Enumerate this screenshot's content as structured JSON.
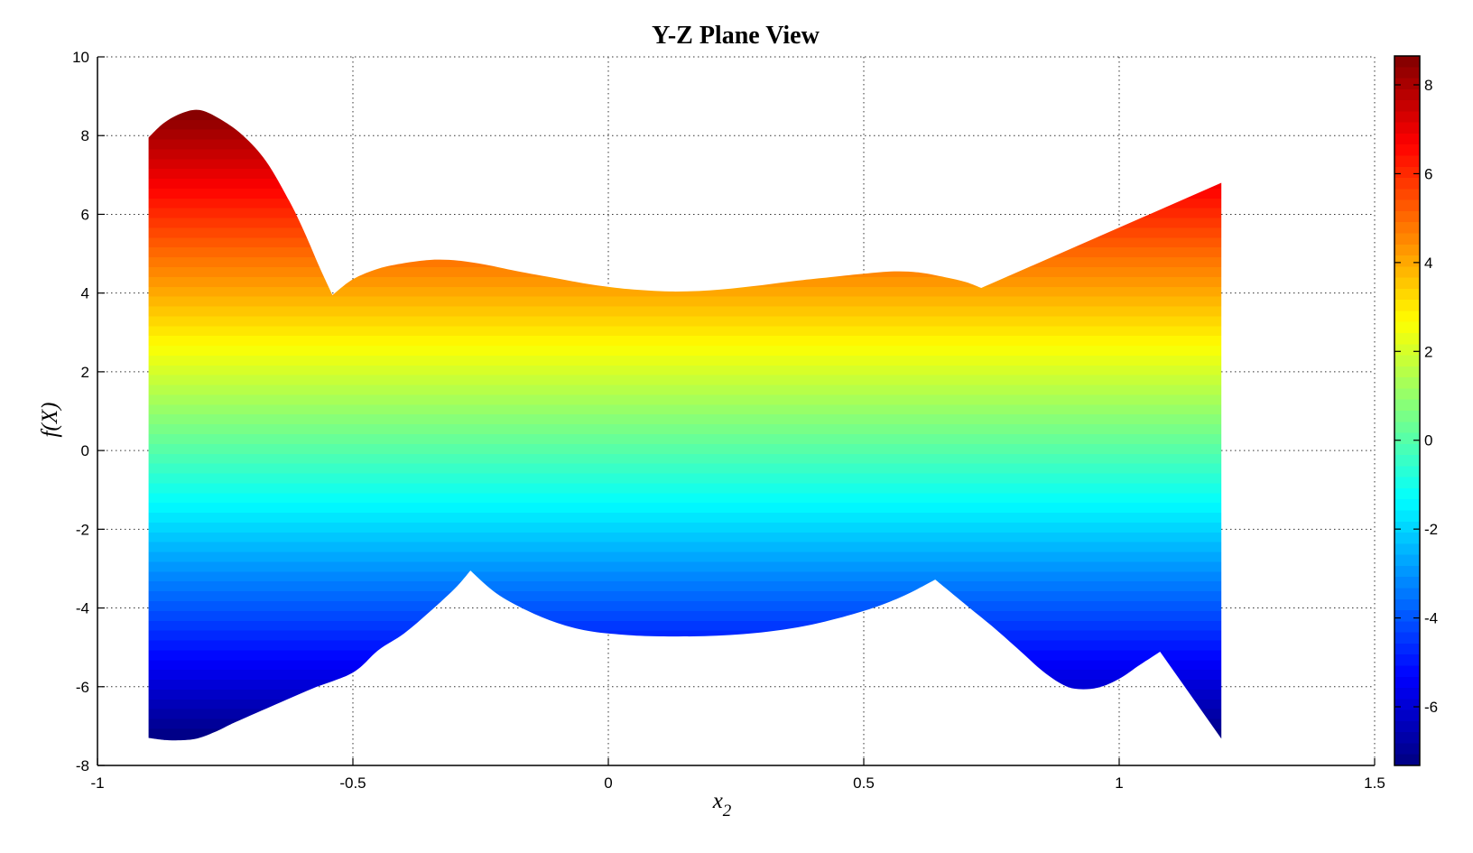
{
  "title": "Y-Z Plane View",
  "labels": {
    "xlabel_base": "x",
    "xlabel_sub": "2",
    "ylabel": "f(X)"
  },
  "chart_data": {
    "type": "area",
    "title": "Y-Z Plane View",
    "xlabel": "x_2",
    "ylabel": "f(X)",
    "xlim": [
      -1,
      1.5
    ],
    "ylim": [
      -8,
      10
    ],
    "grid": "dotted",
    "grid_color": "#333333",
    "background": "#ffffff",
    "x_ticks": [
      {
        "v": -1,
        "label": "-1"
      },
      {
        "v": -0.5,
        "label": "-0.5"
      },
      {
        "v": 0,
        "label": "0"
      },
      {
        "v": 0.5,
        "label": "0.5"
      },
      {
        "v": 1,
        "label": "1"
      },
      {
        "v": 1.5,
        "label": "1.5"
      }
    ],
    "y_ticks": [
      {
        "v": -8,
        "label": "-8"
      },
      {
        "v": -6,
        "label": "-6"
      },
      {
        "v": -4,
        "label": "-4"
      },
      {
        "v": -2,
        "label": "-2"
      },
      {
        "v": 0,
        "label": "0"
      },
      {
        "v": 2,
        "label": "2"
      },
      {
        "v": 4,
        "label": "4"
      },
      {
        "v": 6,
        "label": "6"
      },
      {
        "v": 8,
        "label": "8"
      },
      {
        "v": 10,
        "label": "10"
      }
    ],
    "clim": [
      -7.32,
      8.65
    ],
    "colormap": {
      "name": "jet",
      "bands": 64,
      "stops": [
        [
          0,
          "#000080"
        ],
        [
          0.125,
          "#0000ff"
        ],
        [
          0.375,
          "#00ffff"
        ],
        [
          0.625,
          "#ffff00"
        ],
        [
          0.875,
          "#ff0000"
        ],
        [
          1,
          "#800000"
        ]
      ]
    },
    "colorbar_ticks": [
      {
        "v": 8,
        "label": "8"
      },
      {
        "v": 6,
        "label": "6"
      },
      {
        "v": 4,
        "label": "4"
      },
      {
        "v": 2,
        "label": "2"
      },
      {
        "v": 0,
        "label": "0"
      },
      {
        "v": -2,
        "label": "-2"
      },
      {
        "v": -4,
        "label": "-4"
      },
      {
        "v": -6,
        "label": "-6"
      }
    ],
    "data_x_range": [
      -0.9,
      1.2
    ],
    "upper_envelope": [
      {
        "type": "smooth",
        "points": [
          [
            -0.9,
            7.95
          ],
          [
            -0.87,
            8.32
          ],
          [
            -0.835,
            8.57
          ],
          [
            -0.8,
            8.65
          ],
          [
            -0.76,
            8.42
          ],
          [
            -0.715,
            8.0
          ],
          [
            -0.67,
            7.35
          ],
          [
            -0.625,
            6.35
          ],
          [
            -0.595,
            5.55
          ],
          [
            -0.565,
            4.65
          ],
          [
            -0.54,
            3.95
          ]
        ]
      },
      {
        "type": "smooth",
        "points": [
          [
            -0.54,
            3.95
          ],
          [
            -0.5,
            4.35
          ],
          [
            -0.45,
            4.62
          ],
          [
            -0.4,
            4.76
          ],
          [
            -0.36,
            4.83
          ],
          [
            -0.33,
            4.85
          ],
          [
            -0.29,
            4.82
          ],
          [
            -0.24,
            4.72
          ],
          [
            -0.18,
            4.56
          ],
          [
            -0.1,
            4.37
          ],
          [
            -0.03,
            4.21
          ],
          [
            0.04,
            4.1
          ],
          [
            0.12,
            4.04
          ],
          [
            0.2,
            4.07
          ],
          [
            0.28,
            4.17
          ],
          [
            0.36,
            4.3
          ],
          [
            0.44,
            4.41
          ],
          [
            0.5,
            4.49
          ],
          [
            0.56,
            4.55
          ],
          [
            0.61,
            4.52
          ],
          [
            0.66,
            4.4
          ],
          [
            0.7,
            4.28
          ],
          [
            0.73,
            4.13
          ]
        ]
      },
      {
        "type": "line",
        "points": [
          [
            0.73,
            4.13
          ],
          [
            1.2,
            6.8
          ]
        ]
      }
    ],
    "lower_envelope": [
      {
        "type": "smooth",
        "points": [
          [
            -0.9,
            -7.3
          ],
          [
            -0.86,
            -7.36
          ],
          [
            -0.81,
            -7.33
          ],
          [
            -0.77,
            -7.15
          ],
          [
            -0.73,
            -6.9
          ],
          [
            -0.66,
            -6.5
          ],
          [
            -0.58,
            -6.05
          ],
          [
            -0.5,
            -5.64
          ],
          [
            -0.45,
            -5.07
          ],
          [
            -0.4,
            -4.65
          ],
          [
            -0.35,
            -4.1
          ],
          [
            -0.3,
            -3.5
          ],
          [
            -0.27,
            -3.05
          ]
        ]
      },
      {
        "type": "smooth",
        "points": [
          [
            -0.27,
            -3.05
          ],
          [
            -0.22,
            -3.62
          ],
          [
            -0.16,
            -4.06
          ],
          [
            -0.1,
            -4.38
          ],
          [
            -0.04,
            -4.58
          ],
          [
            0.03,
            -4.68
          ],
          [
            0.1,
            -4.72
          ],
          [
            0.2,
            -4.71
          ],
          [
            0.3,
            -4.62
          ],
          [
            0.38,
            -4.47
          ],
          [
            0.45,
            -4.26
          ],
          [
            0.52,
            -3.99
          ],
          [
            0.58,
            -3.68
          ],
          [
            0.64,
            -3.28
          ]
        ]
      },
      {
        "type": "smooth",
        "points": [
          [
            0.64,
            -3.28
          ],
          [
            0.7,
            -3.92
          ],
          [
            0.75,
            -4.45
          ],
          [
            0.8,
            -5.02
          ],
          [
            0.85,
            -5.6
          ],
          [
            0.89,
            -5.95
          ],
          [
            0.92,
            -6.06
          ],
          [
            0.96,
            -6.02
          ],
          [
            1.0,
            -5.8
          ],
          [
            1.04,
            -5.45
          ],
          [
            1.08,
            -5.11
          ]
        ]
      },
      {
        "type": "line",
        "points": [
          [
            1.08,
            -5.11
          ],
          [
            1.2,
            -7.32
          ]
        ]
      }
    ]
  }
}
